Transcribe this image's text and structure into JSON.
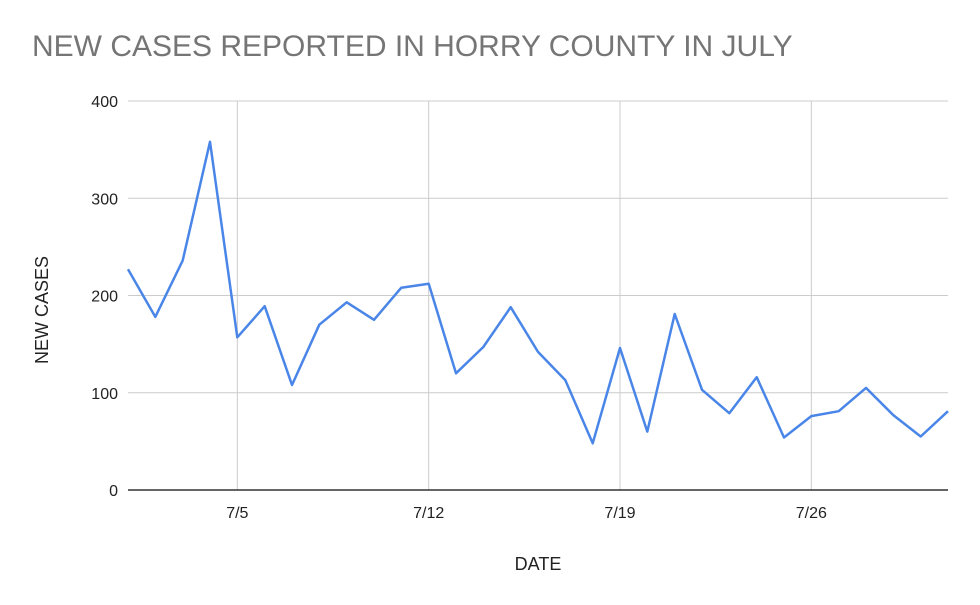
{
  "chart_data": {
    "type": "line",
    "title": "NEW CASES REPORTED IN HORRY COUNTY IN JULY",
    "xlabel": "DATE",
    "ylabel": "NEW CASES",
    "x_ticks": [
      {
        "day": 5,
        "label": "7/5"
      },
      {
        "day": 12,
        "label": "7/12"
      },
      {
        "day": 19,
        "label": "7/19"
      },
      {
        "day": 26,
        "label": "7/26"
      }
    ],
    "y_ticks": [
      0,
      100,
      200,
      300,
      400
    ],
    "ylim": [
      0,
      400
    ],
    "xlim": [
      1,
      31
    ],
    "grid": true,
    "legend": "none",
    "series": [
      {
        "color": "#4a86e8",
        "x": [
          1,
          2,
          3,
          4,
          5,
          6,
          7,
          8,
          9,
          10,
          11,
          12,
          13,
          14,
          15,
          16,
          17,
          18,
          19,
          20,
          21,
          22,
          23,
          24,
          25,
          26,
          27,
          28,
          29,
          30,
          31
        ],
        "values": [
          227,
          178,
          236,
          358,
          157,
          189,
          108,
          170,
          193,
          175,
          208,
          212,
          120,
          147,
          188,
          142,
          113,
          48,
          146,
          60,
          181,
          103,
          79,
          116,
          54,
          76,
          81,
          105,
          77,
          55,
          81
        ]
      }
    ]
  }
}
